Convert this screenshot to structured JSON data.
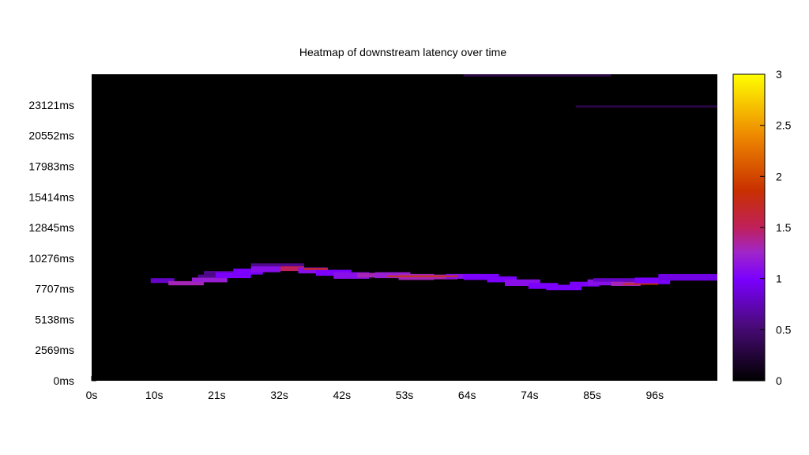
{
  "chart_data": {
    "type": "heatmap",
    "title": "Heatmap of downstream latency over time",
    "xlabel": "",
    "ylabel": "",
    "x_ticks": [
      "0s",
      "10s",
      "21s",
      "32s",
      "42s",
      "53s",
      "64s",
      "74s",
      "85s",
      "96s"
    ],
    "y_ticks": [
      "0ms",
      "2569ms",
      "5138ms",
      "7707ms",
      "10276ms",
      "12845ms",
      "15414ms",
      "17983ms",
      "20552ms",
      "23121ms"
    ],
    "x_range_s": [
      0,
      106
    ],
    "y_range_ms": [
      0,
      25700
    ],
    "colorbar": {
      "range": [
        0,
        3
      ],
      "ticks": [
        "0",
        "0.5",
        "1",
        "1.5",
        "2",
        "2.5",
        "3"
      ]
    },
    "background_color": "#000000",
    "colormap": [
      "#000000",
      "#6a00ff",
      "#cc2200",
      "#ff8800",
      "#ffff00"
    ],
    "cells": [
      {
        "t0": 10,
        "t1": 14,
        "lat_lo": 8200,
        "lat_hi": 8600,
        "value": 0.8
      },
      {
        "t0": 13,
        "t1": 19,
        "lat_lo": 8000,
        "lat_hi": 8350,
        "value": 1.3
      },
      {
        "t0": 17,
        "t1": 23,
        "lat_lo": 8250,
        "lat_hi": 8650,
        "value": 1.2
      },
      {
        "t0": 18,
        "t1": 23,
        "lat_lo": 8650,
        "lat_hi": 8900,
        "value": 0.6
      },
      {
        "t0": 19,
        "t1": 24,
        "lat_lo": 8900,
        "lat_hi": 9200,
        "value": 0.6
      },
      {
        "t0": 21,
        "t1": 27,
        "lat_lo": 8600,
        "lat_hi": 9100,
        "value": 1.0
      },
      {
        "t0": 24,
        "t1": 29,
        "lat_lo": 8900,
        "lat_hi": 9400,
        "value": 1.0
      },
      {
        "t0": 27,
        "t1": 32,
        "lat_lo": 9100,
        "lat_hi": 9600,
        "value": 1.1
      },
      {
        "t0": 27,
        "t1": 36,
        "lat_lo": 9600,
        "lat_hi": 9850,
        "value": 0.6
      },
      {
        "t0": 32,
        "t1": 36,
        "lat_lo": 9200,
        "lat_hi": 9600,
        "value": 1.5
      },
      {
        "t0": 35,
        "t1": 40,
        "lat_lo": 9000,
        "lat_hi": 9500,
        "value": 1.1
      },
      {
        "t0": 38,
        "t1": 44,
        "lat_lo": 8800,
        "lat_hi": 9300,
        "value": 1.0
      },
      {
        "t0": 41,
        "t1": 47,
        "lat_lo": 8550,
        "lat_hi": 9100,
        "value": 1.1
      },
      {
        "t0": 45,
        "t1": 50,
        "lat_lo": 8650,
        "lat_hi": 9050,
        "value": 1.3
      },
      {
        "t0": 48,
        "t1": 54,
        "lat_lo": 8600,
        "lat_hi": 9100,
        "value": 1.2
      },
      {
        "t0": 52,
        "t1": 58,
        "lat_lo": 8450,
        "lat_hi": 8950,
        "value": 1.3
      },
      {
        "t0": 55,
        "t1": 62,
        "lat_lo": 8500,
        "lat_hi": 8900,
        "value": 1.3
      },
      {
        "t0": 60,
        "t1": 66,
        "lat_lo": 8550,
        "lat_hi": 8950,
        "value": 1.1
      },
      {
        "t0": 63,
        "t1": 69,
        "lat_lo": 8450,
        "lat_hi": 8950,
        "value": 1.0
      },
      {
        "t0": 67,
        "t1": 72,
        "lat_lo": 8250,
        "lat_hi": 8750,
        "value": 1.0
      },
      {
        "t0": 70,
        "t1": 76,
        "lat_lo": 7950,
        "lat_hi": 8500,
        "value": 1.1
      },
      {
        "t0": 74,
        "t1": 79,
        "lat_lo": 7700,
        "lat_hi": 8200,
        "value": 1.0
      },
      {
        "t0": 77,
        "t1": 83,
        "lat_lo": 7600,
        "lat_hi": 8050,
        "value": 1.0
      },
      {
        "t0": 81,
        "t1": 86,
        "lat_lo": 7900,
        "lat_hi": 8300,
        "value": 1.0
      },
      {
        "t0": 84,
        "t1": 90,
        "lat_lo": 8000,
        "lat_hi": 8500,
        "value": 1.1
      },
      {
        "t0": 85,
        "t1": 94,
        "lat_lo": 8300,
        "lat_hi": 8600,
        "value": 0.8
      },
      {
        "t0": 88,
        "t1": 93,
        "lat_lo": 7950,
        "lat_hi": 8300,
        "value": 1.3
      },
      {
        "t0": 92,
        "t1": 98,
        "lat_lo": 8100,
        "lat_hi": 8650,
        "value": 1.0
      },
      {
        "t0": 96,
        "t1": 106,
        "lat_lo": 8400,
        "lat_hi": 8950,
        "value": 0.9
      },
      {
        "t0": 36,
        "t1": 40,
        "lat_lo": 9300,
        "lat_hi": 9450,
        "value": 1.8
      },
      {
        "t0": 50,
        "t1": 62,
        "lat_lo": 8700,
        "lat_hi": 8820,
        "value": 1.9
      },
      {
        "t0": 90,
        "t1": 96,
        "lat_lo": 8050,
        "lat_hi": 8170,
        "value": 1.8
      },
      {
        "t0": 63,
        "t1": 88,
        "lat_lo": 25500,
        "lat_hi": 25700,
        "value": 0.3
      },
      {
        "t0": 82,
        "t1": 106,
        "lat_lo": 22900,
        "lat_hi": 23100,
        "value": 0.3
      }
    ]
  }
}
